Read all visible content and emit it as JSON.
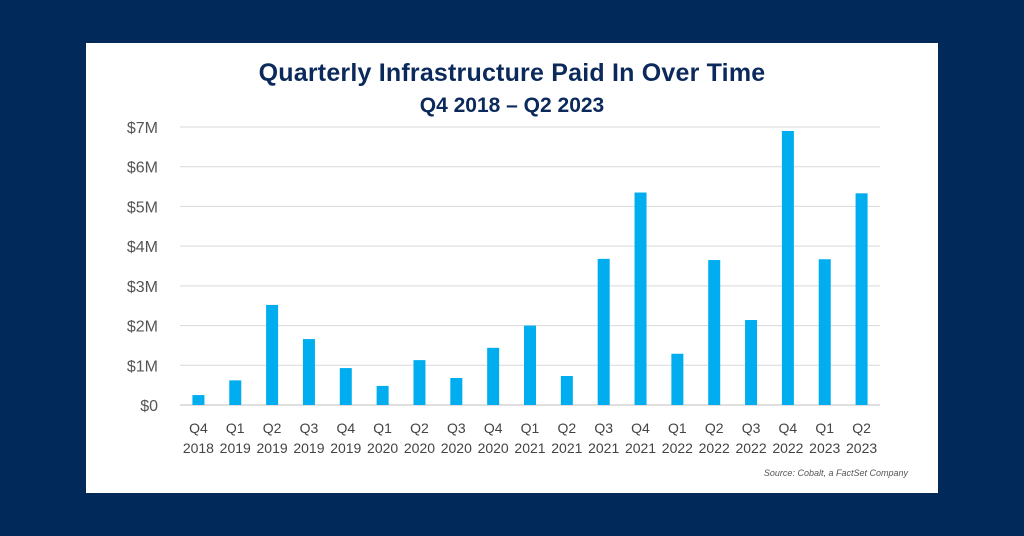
{
  "colors": {
    "background": "#012a5b",
    "card": "#ffffff",
    "bar": "#00aeef",
    "title": "#0b2a5b",
    "grid": "#d9d9d9"
  },
  "chart_data": {
    "type": "bar",
    "title": "Quarterly Infrastructure Paid In Over Time",
    "subtitle": "Q4 2018 – Q2 2023",
    "categories": [
      [
        "Q4",
        "2018"
      ],
      [
        "Q1",
        "2019"
      ],
      [
        "Q2",
        "2019"
      ],
      [
        "Q3",
        "2019"
      ],
      [
        "Q4",
        "2019"
      ],
      [
        "Q1",
        "2020"
      ],
      [
        "Q2",
        "2020"
      ],
      [
        "Q3",
        "2020"
      ],
      [
        "Q4",
        "2020"
      ],
      [
        "Q1",
        "2021"
      ],
      [
        "Q2",
        "2021"
      ],
      [
        "Q3",
        "2021"
      ],
      [
        "Q4",
        "2021"
      ],
      [
        "Q1",
        "2022"
      ],
      [
        "Q2",
        "2022"
      ],
      [
        "Q3",
        "2022"
      ],
      [
        "Q4",
        "2022"
      ],
      [
        "Q1",
        "2023"
      ],
      [
        "Q2",
        "2023"
      ]
    ],
    "values": [
      0.25,
      0.62,
      2.52,
      1.66,
      0.93,
      0.48,
      1.13,
      0.68,
      1.44,
      2.0,
      0.73,
      3.68,
      5.35,
      1.29,
      3.65,
      2.14,
      6.9,
      3.67,
      5.33
    ],
    "unit": "millions USD",
    "ylim": [
      0,
      7
    ],
    "yticks": [
      "$0",
      "$1M",
      "$2M",
      "$3M",
      "$4M",
      "$5M",
      "$6M",
      "$7M"
    ],
    "xlabel": "",
    "ylabel": "",
    "grid": true,
    "legend": "none",
    "source": "Source: Cobalt, a FactSet Company"
  }
}
